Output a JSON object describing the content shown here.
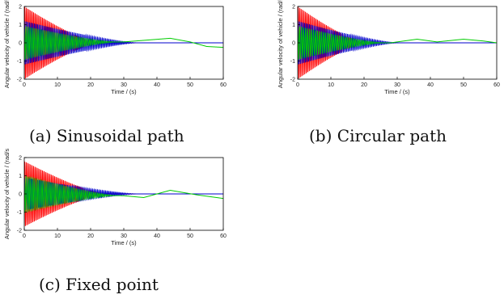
{
  "figure_captions": [
    "(a) Sinusoidal path",
    "(b) Circular path",
    "(c) Fixed point"
  ],
  "chart_data": [
    {
      "type": "line",
      "caption": "(a) Sinusoidal path",
      "xlabel": "Time / (s)",
      "ylabel": "Angular velocity of vehicle / (rad/s",
      "xlim": [
        0,
        60
      ],
      "ylim": [
        -2,
        2
      ],
      "xticks": [
        0,
        10,
        20,
        30,
        40,
        50,
        60
      ],
      "yticks": [
        -2,
        -1,
        0,
        1,
        2
      ],
      "grid": false,
      "series": [
        {
          "color": "#ff0000",
          "amplitude": 2.0,
          "decay_end": 22,
          "period": 0.45
        },
        {
          "color": "#0000cc",
          "amplitude": 1.2,
          "decay_end": 34,
          "period": 0.5
        },
        {
          "color": "#00cc00",
          "amplitude": 0.9,
          "decay_end": 28,
          "period": 0.6,
          "drift": [
            [
              0,
              0
            ],
            [
              30,
              0.05
            ],
            [
              44,
              0.25
            ],
            [
              50,
              0.05
            ],
            [
              55,
              -0.2
            ],
            [
              60,
              -0.25
            ]
          ]
        }
      ]
    },
    {
      "type": "line",
      "caption": "(b) Circular path",
      "xlabel": "Time / (s)",
      "ylabel": "Angular velocity of vehicle / (rad/s",
      "xlim": [
        0,
        60
      ],
      "ylim": [
        -2,
        2
      ],
      "xticks": [
        0,
        10,
        20,
        30,
        40,
        50,
        60
      ],
      "yticks": [
        -2,
        -1,
        0,
        1,
        2
      ],
      "grid": false,
      "series": [
        {
          "color": "#ff0000",
          "amplitude": 2.0,
          "decay_end": 20,
          "period": 0.45
        },
        {
          "color": "#0000cc",
          "amplitude": 1.2,
          "decay_end": 30,
          "period": 0.5
        },
        {
          "color": "#00cc00",
          "amplitude": 0.9,
          "decay_end": 26,
          "period": 0.6,
          "drift": [
            [
              0,
              0
            ],
            [
              28,
              0.0
            ],
            [
              36,
              0.2
            ],
            [
              42,
              0.05
            ],
            [
              50,
              0.2
            ],
            [
              56,
              0.1
            ],
            [
              60,
              0.0
            ]
          ]
        }
      ]
    },
    {
      "type": "line",
      "caption": "(c) Fixed point",
      "xlabel": "Time / (s)",
      "ylabel": "Angular velocity of vehicle / (rad/s",
      "xlim": [
        0,
        60
      ],
      "ylim": [
        -2,
        2
      ],
      "xticks": [
        0,
        10,
        20,
        30,
        40,
        50,
        60
      ],
      "yticks": [
        -2,
        -1,
        0,
        1,
        2
      ],
      "grid": false,
      "series": [
        {
          "color": "#ff0000",
          "amplitude": 1.8,
          "decay_end": 24,
          "period": 0.45
        },
        {
          "color": "#0000cc",
          "amplitude": 0.9,
          "decay_end": 34,
          "period": 0.5
        },
        {
          "color": "#00cc00",
          "amplitude": 1.0,
          "decay_end": 28,
          "period": 0.6,
          "drift": [
            [
              0,
              0
            ],
            [
              30,
              -0.1
            ],
            [
              36,
              -0.2
            ],
            [
              44,
              0.2
            ],
            [
              52,
              -0.05
            ],
            [
              60,
              -0.25
            ]
          ]
        }
      ]
    }
  ]
}
